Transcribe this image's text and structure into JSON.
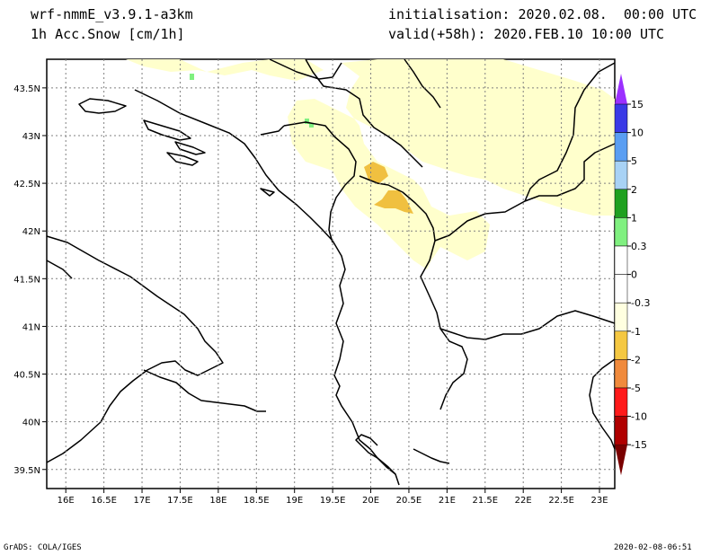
{
  "header": {
    "model": "wrf-nmmE_v3.9.1-a3km",
    "field": "1h Acc.Snow [cm/1h]",
    "init": "initialisation: 2020.02.08.  00:00 UTC",
    "valid": "valid(+58h): 2020.FEB.10 10:00 UTC"
  },
  "footer": {
    "left": "GrADS: COLA/IGES",
    "right": "2020-02-08-06:51"
  },
  "chart_data": {
    "type": "map",
    "lon_range": [
      15.75,
      23.2
    ],
    "lat_range": [
      39.3,
      43.8
    ],
    "x_ticks": [
      "16E",
      "16.5E",
      "17E",
      "17.5E",
      "18E",
      "18.5E",
      "19E",
      "19.5E",
      "20E",
      "20.5E",
      "21E",
      "21.5E",
      "22E",
      "22.5E",
      "23E"
    ],
    "x_tick_values": [
      16,
      16.5,
      17,
      17.5,
      18,
      18.5,
      19,
      19.5,
      20,
      20.5,
      21,
      21.5,
      22,
      22.5,
      23
    ],
    "y_ticks": [
      "39.5N",
      "40N",
      "40.5N",
      "41N",
      "41.5N",
      "42N",
      "42.5N",
      "43N",
      "43.5N"
    ],
    "y_tick_values": [
      39.5,
      40,
      40.5,
      41,
      41.5,
      42,
      42.5,
      43,
      43.5
    ],
    "grid": true,
    "colorbar": {
      "labels": [
        "15",
        "10",
        "5",
        "2",
        "1",
        "0.3",
        "0",
        "-0.3",
        "-1",
        "-2",
        "-5",
        "-10",
        "-15"
      ],
      "colors": [
        "#9b30ff",
        "#3a3ae6",
        "#5a9ef2",
        "#a8d2f5",
        "#1fa01f",
        "#80f080",
        "#ffffff",
        "#ffffff",
        "#ffffe0",
        "#f5c842",
        "#f08a3c",
        "#ff1a1a",
        "#b00000",
        "#7a0000"
      ]
    },
    "snow_color_light": "#ffffcc",
    "snow_color_mid": "#f5c842",
    "green_color": "#80f080"
  }
}
